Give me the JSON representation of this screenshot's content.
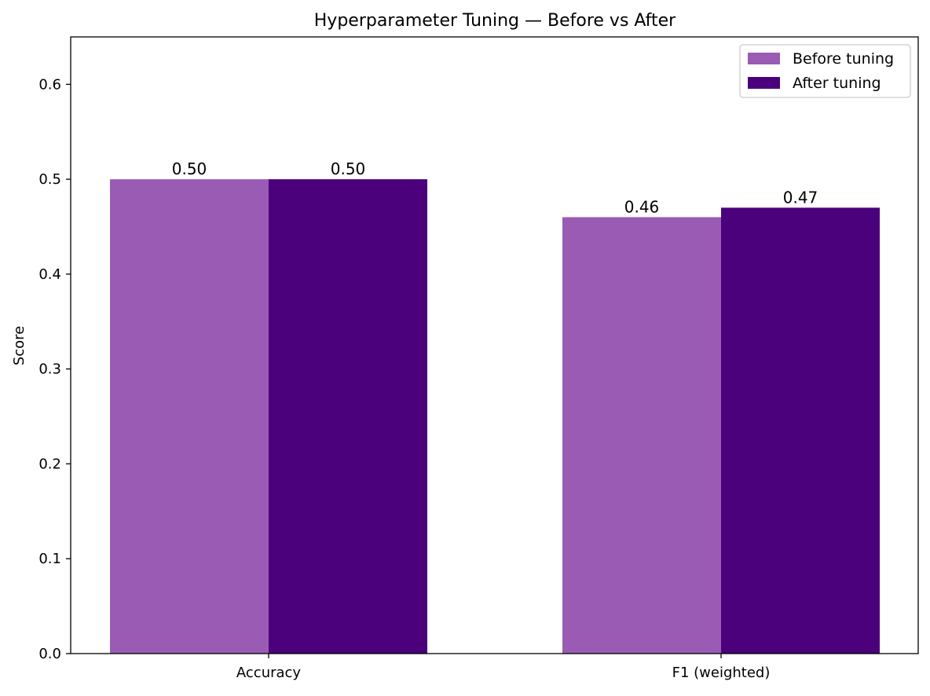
{
  "chart_data": {
    "type": "bar",
    "title": "Hyperparameter Tuning — Before vs After",
    "xlabel": "",
    "ylabel": "Score",
    "categories": [
      "Accuracy",
      "F1 (weighted)"
    ],
    "series": [
      {
        "name": "Before tuning",
        "values": [
          0.5,
          0.46
        ],
        "labels": [
          "0.50",
          "0.46"
        ],
        "color": "#9a5bb4"
      },
      {
        "name": "After tuning",
        "values": [
          0.5,
          0.47
        ],
        "labels": [
          "0.50",
          "0.47"
        ],
        "color": "#4b007c"
      }
    ],
    "ylim": [
      0,
      0.65
    ],
    "yticks": [
      0.0,
      0.1,
      0.2,
      0.3,
      0.4,
      0.5,
      0.6
    ],
    "ytick_labels": [
      "0.0",
      "0.1",
      "0.2",
      "0.3",
      "0.4",
      "0.5",
      "0.6"
    ],
    "grid": false,
    "legend_position": "top-right"
  }
}
